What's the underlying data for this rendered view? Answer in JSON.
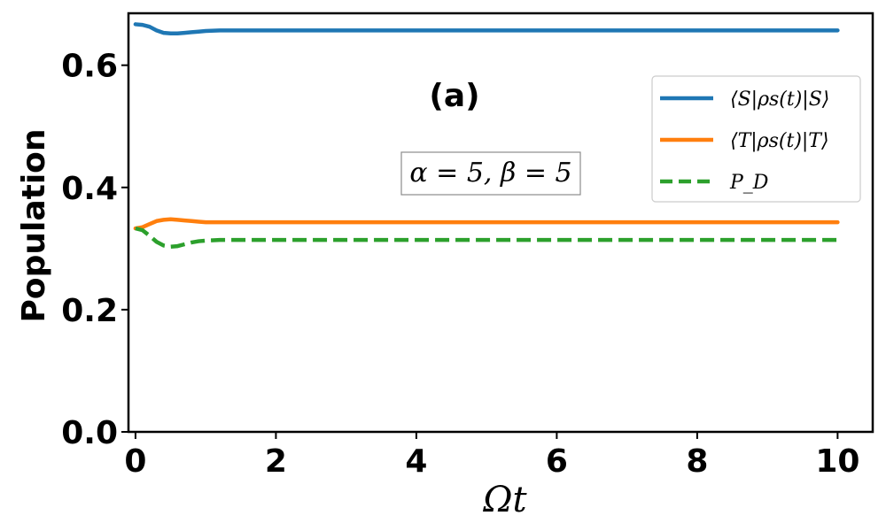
{
  "chart_data": {
    "type": "line",
    "xlabel": "Ωt",
    "ylabel": "Population",
    "xlim": [
      -0.1,
      10.5
    ],
    "ylim": [
      0.0,
      0.685
    ],
    "x_ticks": [
      "0",
      "2",
      "4",
      "6",
      "8",
      "10"
    ],
    "x_tick_values": [
      0,
      2,
      4,
      6,
      8,
      10
    ],
    "y_ticks": [
      "0.0",
      "0.2",
      "0.4",
      "0.6"
    ],
    "y_tick_values": [
      0.0,
      0.2,
      0.4,
      0.6
    ],
    "annotations": {
      "panel_label": "(a)",
      "params": "α = 5, β = 5"
    },
    "legend_placement": "upper-right",
    "grid": false,
    "series": [
      {
        "name": "⟨S|ρs(t)|S⟩",
        "color": "#1f77b4",
        "style": "solid",
        "x": [
          0,
          0.1,
          0.2,
          0.3,
          0.4,
          0.5,
          0.6,
          0.7,
          0.8,
          0.9,
          1.0,
          1.2,
          1.5,
          2.0,
          4.0,
          6.0,
          8.0,
          10.0
        ],
        "y": [
          0.667,
          0.666,
          0.663,
          0.657,
          0.653,
          0.652,
          0.652,
          0.653,
          0.654,
          0.655,
          0.656,
          0.657,
          0.657,
          0.657,
          0.657,
          0.657,
          0.657,
          0.657
        ]
      },
      {
        "name": "⟨T|ρs(t)|T⟩",
        "color": "#ff7f0e",
        "style": "solid",
        "x": [
          0,
          0.1,
          0.2,
          0.3,
          0.4,
          0.5,
          0.6,
          0.7,
          0.8,
          0.9,
          1.0,
          1.2,
          1.5,
          2.0,
          4.0,
          6.0,
          8.0,
          10.0
        ],
        "y": [
          0.333,
          0.335,
          0.34,
          0.345,
          0.347,
          0.348,
          0.347,
          0.346,
          0.345,
          0.344,
          0.343,
          0.343,
          0.343,
          0.343,
          0.343,
          0.343,
          0.343,
          0.343
        ]
      },
      {
        "name": "P_D",
        "color": "#2ca02c",
        "style": "dashed",
        "x": [
          0,
          0.1,
          0.2,
          0.3,
          0.4,
          0.5,
          0.6,
          0.7,
          0.8,
          0.9,
          1.0,
          1.2,
          1.5,
          2.0,
          4.0,
          6.0,
          8.0,
          10.0
        ],
        "y": [
          0.333,
          0.33,
          0.321,
          0.311,
          0.305,
          0.303,
          0.304,
          0.307,
          0.31,
          0.312,
          0.313,
          0.314,
          0.314,
          0.314,
          0.314,
          0.314,
          0.314,
          0.314
        ]
      }
    ]
  }
}
